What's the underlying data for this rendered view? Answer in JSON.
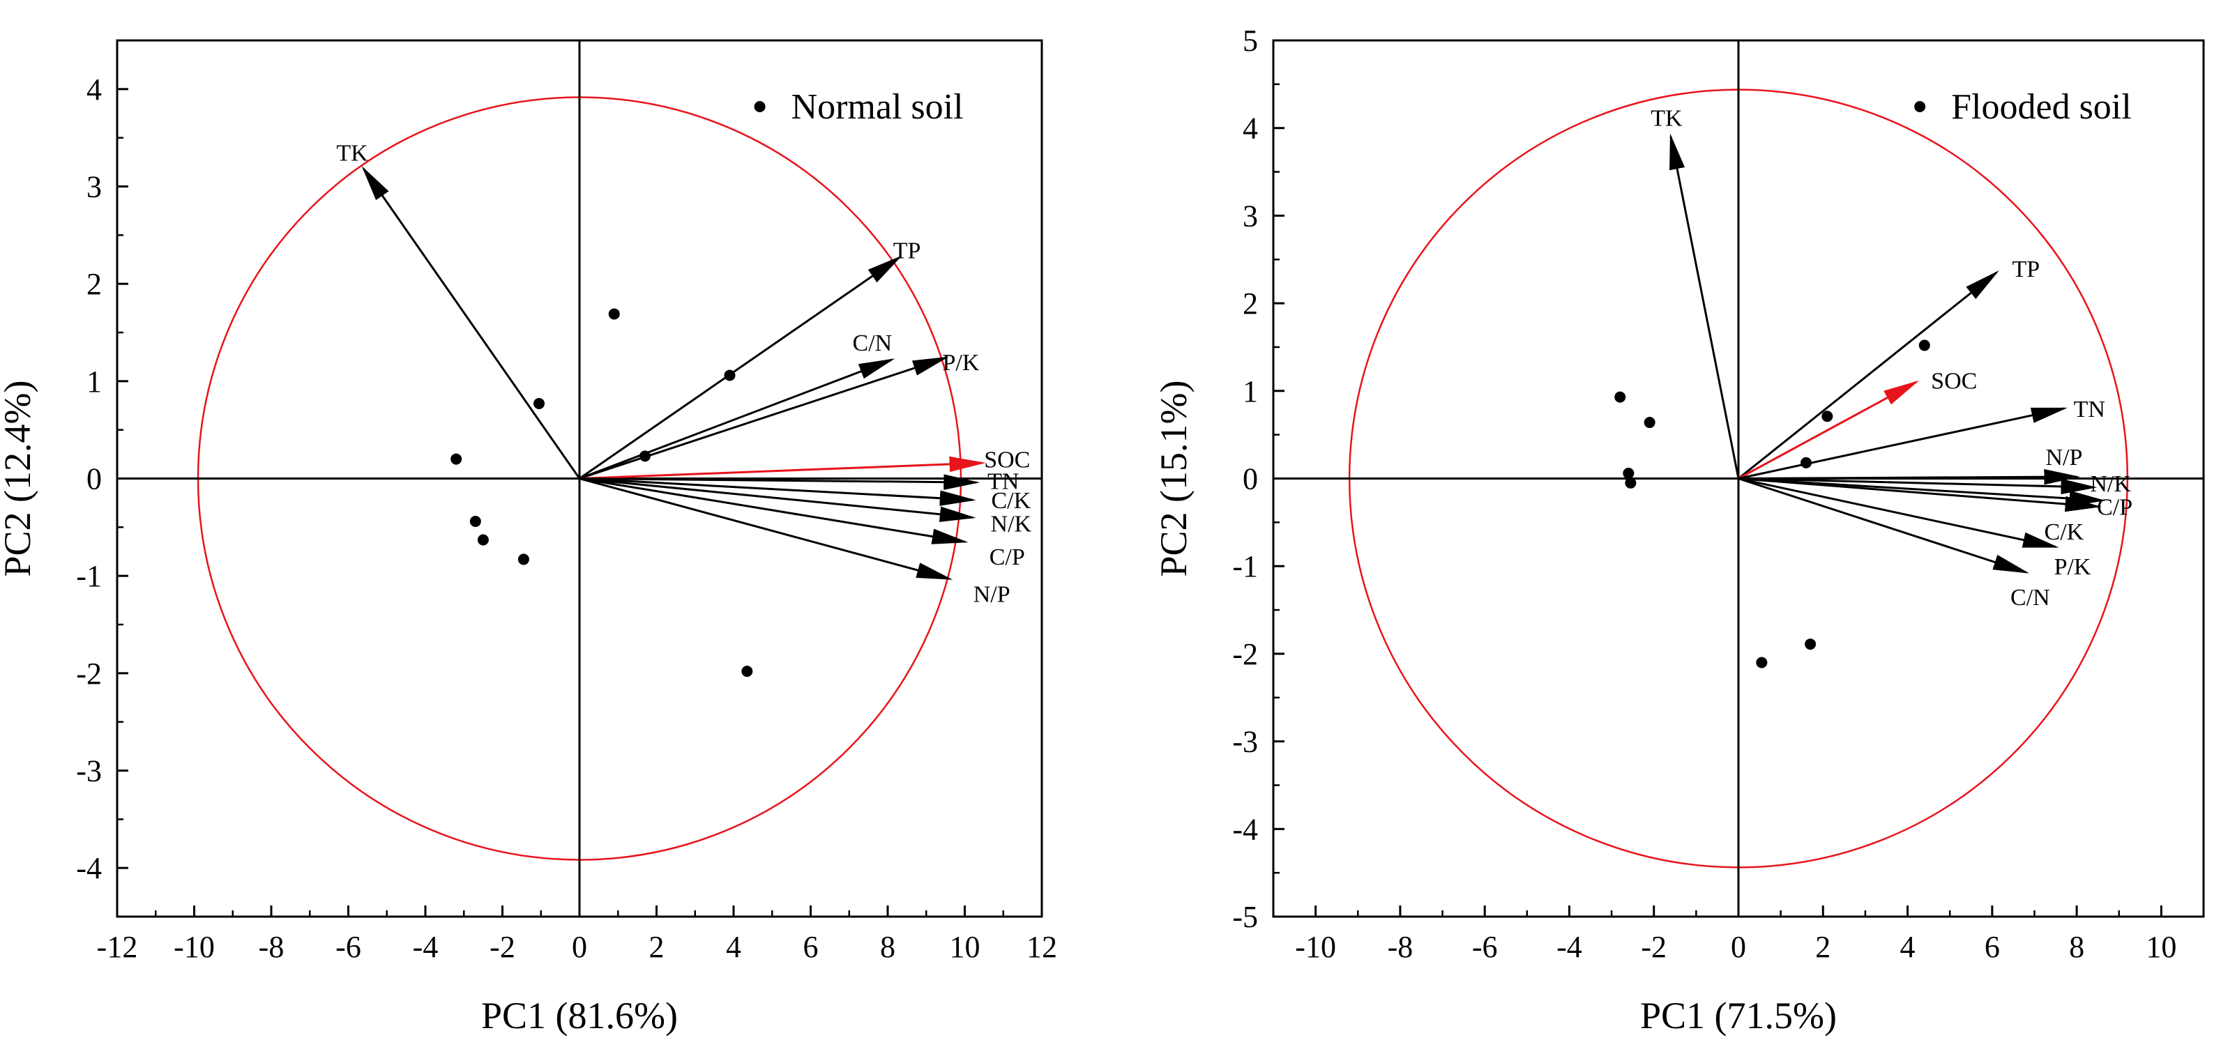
{
  "chart_data": [
    {
      "type": "scatter",
      "subtype": "pca-biplot",
      "legend": "Normal soil",
      "legend_position": "top-right",
      "xlabel": "PC1 (81.6%)",
      "ylabel": "PC2 (12.4%)",
      "xlim": [
        -12,
        12
      ],
      "ylim": [
        -4.5,
        4.5
      ],
      "xticks": [
        -12,
        -10,
        -8,
        -6,
        -4,
        -2,
        0,
        2,
        4,
        6,
        8,
        10,
        12
      ],
      "yticks": [
        -4,
        -3,
        -2,
        -1,
        0,
        1,
        2,
        3,
        4
      ],
      "xtick_labels": [
        "-12",
        "-10",
        "-8",
        "-6",
        "-4",
        "-2",
        "0",
        "2",
        "4",
        "6",
        "8",
        "10",
        "12"
      ],
      "ytick_labels": [
        "-4",
        "-3",
        "-2",
        "-1",
        "0",
        "1",
        "2",
        "3",
        "4"
      ],
      "circle_radius": 9.9,
      "circle_color": "#e8141b",
      "points": [
        {
          "x": -3.2,
          "y": 0.2
        },
        {
          "x": -2.7,
          "y": -0.44
        },
        {
          "x": -2.5,
          "y": -0.63
        },
        {
          "x": -1.45,
          "y": -0.83
        },
        {
          "x": -1.05,
          "y": 0.77
        },
        {
          "x": 0.9,
          "y": 1.69
        },
        {
          "x": 1.7,
          "y": 0.23
        },
        {
          "x": 3.9,
          "y": 1.06
        },
        {
          "x": 4.35,
          "y": -1.98
        }
      ],
      "loadings": [
        {
          "name": "TK",
          "x": -5.6,
          "y": 3.18,
          "color": "#000000",
          "label_x": -5.9,
          "label_y": 3.35
        },
        {
          "name": "TP",
          "x": 8.3,
          "y": 2.27,
          "color": "#000000",
          "label_x": 8.5,
          "label_y": 2.35
        },
        {
          "name": "C/N",
          "x": 8.1,
          "y": 1.22,
          "color": "#000000",
          "label_x": 7.6,
          "label_y": 1.4
        },
        {
          "name": "P/K",
          "x": 9.5,
          "y": 1.24,
          "color": "#000000",
          "label_x": 9.9,
          "label_y": 1.2
        },
        {
          "name": "SOC",
          "x": 10.45,
          "y": 0.16,
          "color": "#e8141b",
          "label_x": 11.1,
          "label_y": 0.2
        },
        {
          "name": "TN",
          "x": 10.3,
          "y": -0.04,
          "color": "#000000",
          "label_x": 11.0,
          "label_y": -0.02
        },
        {
          "name": "C/K",
          "x": 10.2,
          "y": -0.22,
          "color": "#000000",
          "label_x": 11.2,
          "label_y": -0.22
        },
        {
          "name": "N/K",
          "x": 10.2,
          "y": -0.4,
          "color": "#000000",
          "label_x": 11.2,
          "label_y": -0.46
        },
        {
          "name": "C/P",
          "x": 10.0,
          "y": -0.65,
          "color": "#000000",
          "label_x": 11.1,
          "label_y": -0.8
        },
        {
          "name": "N/P",
          "x": 9.6,
          "y": -1.03,
          "color": "#000000",
          "label_x": 10.7,
          "label_y": -1.18
        }
      ]
    },
    {
      "type": "scatter",
      "subtype": "pca-biplot",
      "legend": "Flooded soil",
      "legend_position": "top-right",
      "xlabel": "PC1 (71.5%)",
      "ylabel": "PC2 (15.1%)",
      "xlim": [
        -11,
        11
      ],
      "ylim": [
        -5,
        5
      ],
      "xticks": [
        -10,
        -8,
        -6,
        -4,
        -2,
        0,
        2,
        4,
        6,
        8,
        10
      ],
      "yticks": [
        -5,
        -4,
        -3,
        -2,
        -1,
        0,
        1,
        2,
        3,
        4,
        5
      ],
      "xtick_labels": [
        "-10",
        "-8",
        "-6",
        "-4",
        "-2",
        "0",
        "2",
        "4",
        "6",
        "8",
        "10"
      ],
      "ytick_labels": [
        "-5",
        "-4",
        "-3",
        "-2",
        "-1",
        "0",
        "1",
        "2",
        "3",
        "4",
        "5"
      ],
      "circle_radius": 9.2,
      "circle_color": "#e8141b",
      "points": [
        {
          "x": -2.8,
          "y": 0.93
        },
        {
          "x": -2.6,
          "y": 0.06
        },
        {
          "x": -2.55,
          "y": -0.05
        },
        {
          "x": -2.1,
          "y": 0.64
        },
        {
          "x": 0.55,
          "y": -2.1
        },
        {
          "x": 1.6,
          "y": 0.18
        },
        {
          "x": 1.7,
          "y": -1.89
        },
        {
          "x": 2.1,
          "y": 0.71
        },
        {
          "x": 4.4,
          "y": 1.52
        }
      ],
      "loadings": [
        {
          "name": "TK",
          "x": -1.6,
          "y": 3.9,
          "color": "#000000",
          "label_x": -1.7,
          "label_y": 4.12
        },
        {
          "name": "TP",
          "x": 6.1,
          "y": 2.35,
          "color": "#000000",
          "label_x": 6.8,
          "label_y": 2.4
        },
        {
          "name": "SOC",
          "x": 4.2,
          "y": 1.1,
          "color": "#e8141b",
          "label_x": 5.1,
          "label_y": 1.12
        },
        {
          "name": "TN",
          "x": 7.7,
          "y": 0.8,
          "color": "#000000",
          "label_x": 8.3,
          "label_y": 0.8
        },
        {
          "name": "N/P",
          "x": 8.0,
          "y": 0.02,
          "color": "#000000",
          "label_x": 7.7,
          "label_y": 0.25
        },
        {
          "name": "N/K",
          "x": 8.4,
          "y": -0.1,
          "color": "#000000",
          "label_x": 8.8,
          "label_y": -0.05
        },
        {
          "name": "C/P",
          "x": 8.6,
          "y": -0.25,
          "color": "#000000",
          "label_x": 8.9,
          "label_y": -0.32
        },
        {
          "name": "C/K",
          "x": 8.5,
          "y": -0.32,
          "color": "#000000",
          "label_x": 7.7,
          "label_y": -0.6
        },
        {
          "name": "P/K",
          "x": 7.5,
          "y": -0.78,
          "color": "#000000",
          "label_x": 7.9,
          "label_y": -1.0
        },
        {
          "name": "C/N",
          "x": 6.8,
          "y": -1.07,
          "color": "#000000",
          "label_x": 6.9,
          "label_y": -1.35
        }
      ]
    }
  ]
}
